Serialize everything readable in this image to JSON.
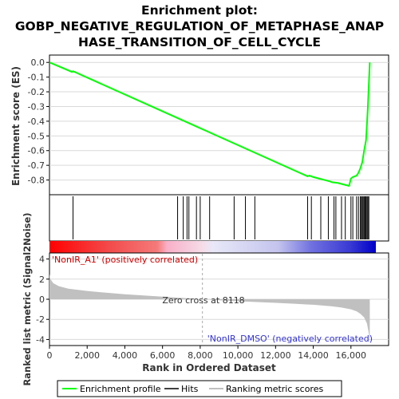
{
  "chart_data": {
    "type": "line",
    "title_lines": [
      "Enrichment plot:",
      "GOBP_NEGATIVE_REGULATION_OF_METAPHASE_ANAP",
      "HASE_TRANSITION_OF_CELL_CYCLE"
    ],
    "es_panel": {
      "ylabel": "Enrichment score (ES)",
      "ylim": [
        -0.9,
        0.05
      ],
      "yticks": [
        0.0,
        -0.1,
        -0.2,
        -0.3,
        -0.4,
        -0.5,
        -0.6,
        -0.7,
        -0.8
      ],
      "ytick_labels": [
        "0.0",
        "-0.1",
        "-0.2",
        "-0.3",
        "-0.4",
        "-0.5",
        "-0.6",
        "-0.7",
        "-0.8"
      ],
      "grid": true,
      "series": [
        {
          "name": "Enrichment profile",
          "color": "#00ff00",
          "x": [
            0,
            1200,
            1250,
            13700,
            13800,
            14000,
            14300,
            14600,
            14900,
            15000,
            15300,
            15600,
            15900,
            16000,
            16100,
            16200,
            16300,
            16400,
            16500,
            16600,
            16700,
            16800,
            16850,
            16900,
            16950,
            17000
          ],
          "y": [
            0.0,
            -0.065,
            -0.06,
            -0.775,
            -0.77,
            -0.78,
            -0.79,
            -0.8,
            -0.81,
            -0.815,
            -0.82,
            -0.83,
            -0.84,
            -0.79,
            -0.78,
            -0.775,
            -0.77,
            -0.75,
            -0.72,
            -0.68,
            -0.6,
            -0.53,
            -0.42,
            -0.3,
            -0.15,
            0.0
          ]
        }
      ]
    },
    "hits_panel": {
      "name": "Hits",
      "positions": [
        1250,
        6800,
        7100,
        7300,
        7400,
        7800,
        8000,
        8500,
        9800,
        10400,
        10900,
        13700,
        13900,
        14400,
        14800,
        15100,
        15200,
        15500,
        15700,
        16000,
        16100,
        16300,
        16400,
        16500,
        16550,
        16600,
        16650,
        16700,
        16750,
        16800,
        16850,
        16900,
        16950
      ]
    },
    "metric_panel": {
      "ylabel": "Ranked list metric (Signal2Noise)",
      "ylim": [
        -4.6,
        4.6
      ],
      "yticks": [
        4,
        2,
        0,
        -2,
        -4
      ],
      "ytick_labels": [
        "4",
        "2",
        "0",
        "-2",
        "-4"
      ],
      "grid": true,
      "series": [
        {
          "name": "Ranking metric scores",
          "color": "#c0c0c0",
          "x": [
            0,
            50,
            200,
            500,
            1000,
            2000,
            3000,
            4000,
            5000,
            6000,
            7000,
            8118,
            9000,
            10000,
            11000,
            12000,
            13000,
            14000,
            15000,
            15500,
            16000,
            16300,
            16500,
            16700,
            16850,
            16950,
            17000
          ],
          "y": [
            2.5,
            2.0,
            1.6,
            1.3,
            1.05,
            0.82,
            0.65,
            0.5,
            0.38,
            0.26,
            0.14,
            0.0,
            -0.1,
            -0.2,
            -0.28,
            -0.36,
            -0.45,
            -0.55,
            -0.7,
            -0.82,
            -1.0,
            -1.2,
            -1.45,
            -1.8,
            -2.4,
            -3.4,
            -4.3
          ]
        }
      ],
      "labels": {
        "positive": "'NonIR_A1' (positively correlated)",
        "negative": "'NonIR_DMSO' (negatively correlated)",
        "zero_cross": "Zero cross at 8118"
      },
      "zero_cross_rank": 8118
    },
    "x_axis": {
      "xlabel": "Rank in Ordered Dataset",
      "xlim": [
        0,
        18000
      ],
      "xticks": [
        0,
        2000,
        4000,
        6000,
        8000,
        10000,
        12000,
        14000,
        16000
      ],
      "xtick_labels": [
        "0",
        "2,000",
        "4,000",
        "6,000",
        "8,000",
        "10,000",
        "12,000",
        "14,000",
        "16,000"
      ]
    },
    "legend": {
      "placement": "bottom",
      "entries": [
        {
          "label": "Enrichment profile",
          "color": "#00ff00"
        },
        {
          "label": "Hits",
          "color": "#000000"
        },
        {
          "label": "Ranking metric scores",
          "color": "#c0c0c0"
        }
      ]
    }
  }
}
